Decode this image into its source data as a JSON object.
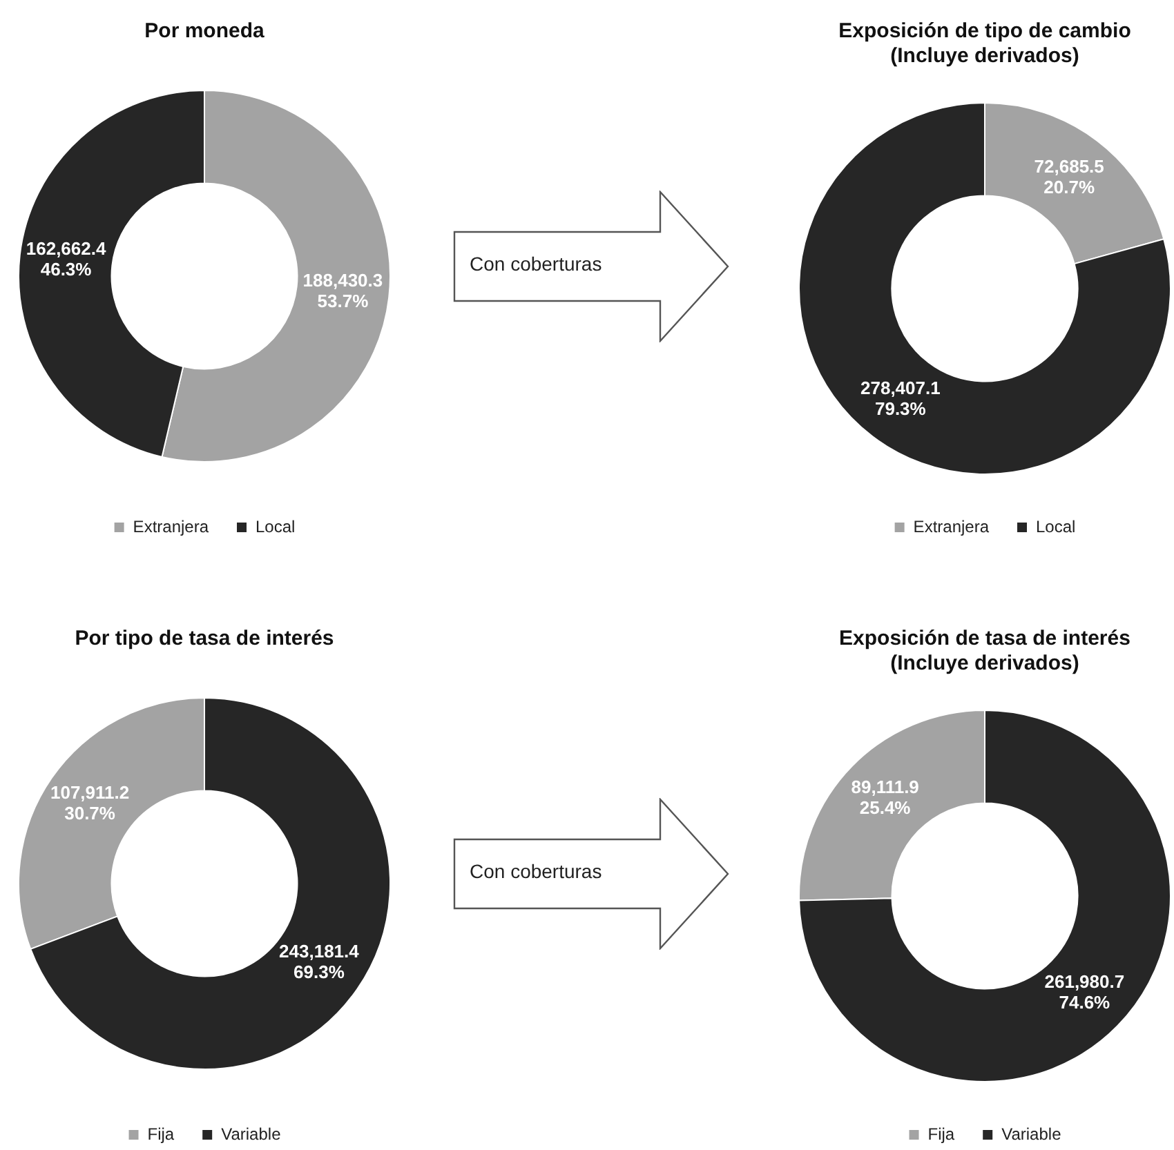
{
  "chart_data": [
    {
      "type": "donut",
      "title": "Por moneda",
      "categories": [
        "Extranjera",
        "Local"
      ],
      "values": [
        188430.3,
        162662.4
      ],
      "colors": [
        "#a3a3a3",
        "#262626"
      ],
      "value_labels": [
        "188,430.3\n53.7%",
        "162,662.4\n46.3%"
      ],
      "legend": "bottom",
      "annotations": [
        "Con coberturas"
      ]
    },
    {
      "type": "donut",
      "title": "Exposición de tipo de cambio (Incluye derivados)",
      "categories": [
        "Extranjera",
        "Local"
      ],
      "values": [
        72685.5,
        278407.1
      ],
      "colors": [
        "#a3a3a3",
        "#262626"
      ],
      "value_labels": [
        "72,685.5\n20.7%",
        "278,407.1\n79.3%"
      ],
      "legend": "bottom"
    },
    {
      "type": "donut",
      "title": "Por tipo de tasa de interés",
      "categories": [
        "Fija",
        "Variable"
      ],
      "values": [
        107911.2,
        243181.4
      ],
      "colors": [
        "#a3a3a3",
        "#262626"
      ],
      "value_labels": [
        "107,911.2\n30.7%",
        "243,181.4\n69.3%"
      ],
      "legend": "bottom",
      "annotations": [
        "Con coberturas"
      ]
    },
    {
      "type": "donut",
      "title": "Exposición de tasa de interés (Incluye derivados)",
      "categories": [
        "Fija",
        "Variable"
      ],
      "values": [
        89111.9,
        261980.7
      ],
      "colors": [
        "#a3a3a3",
        "#262626"
      ],
      "value_labels": [
        "89,111.9\n25.4%",
        "261,980.7\n74.6%"
      ],
      "legend": "bottom"
    }
  ]
}
